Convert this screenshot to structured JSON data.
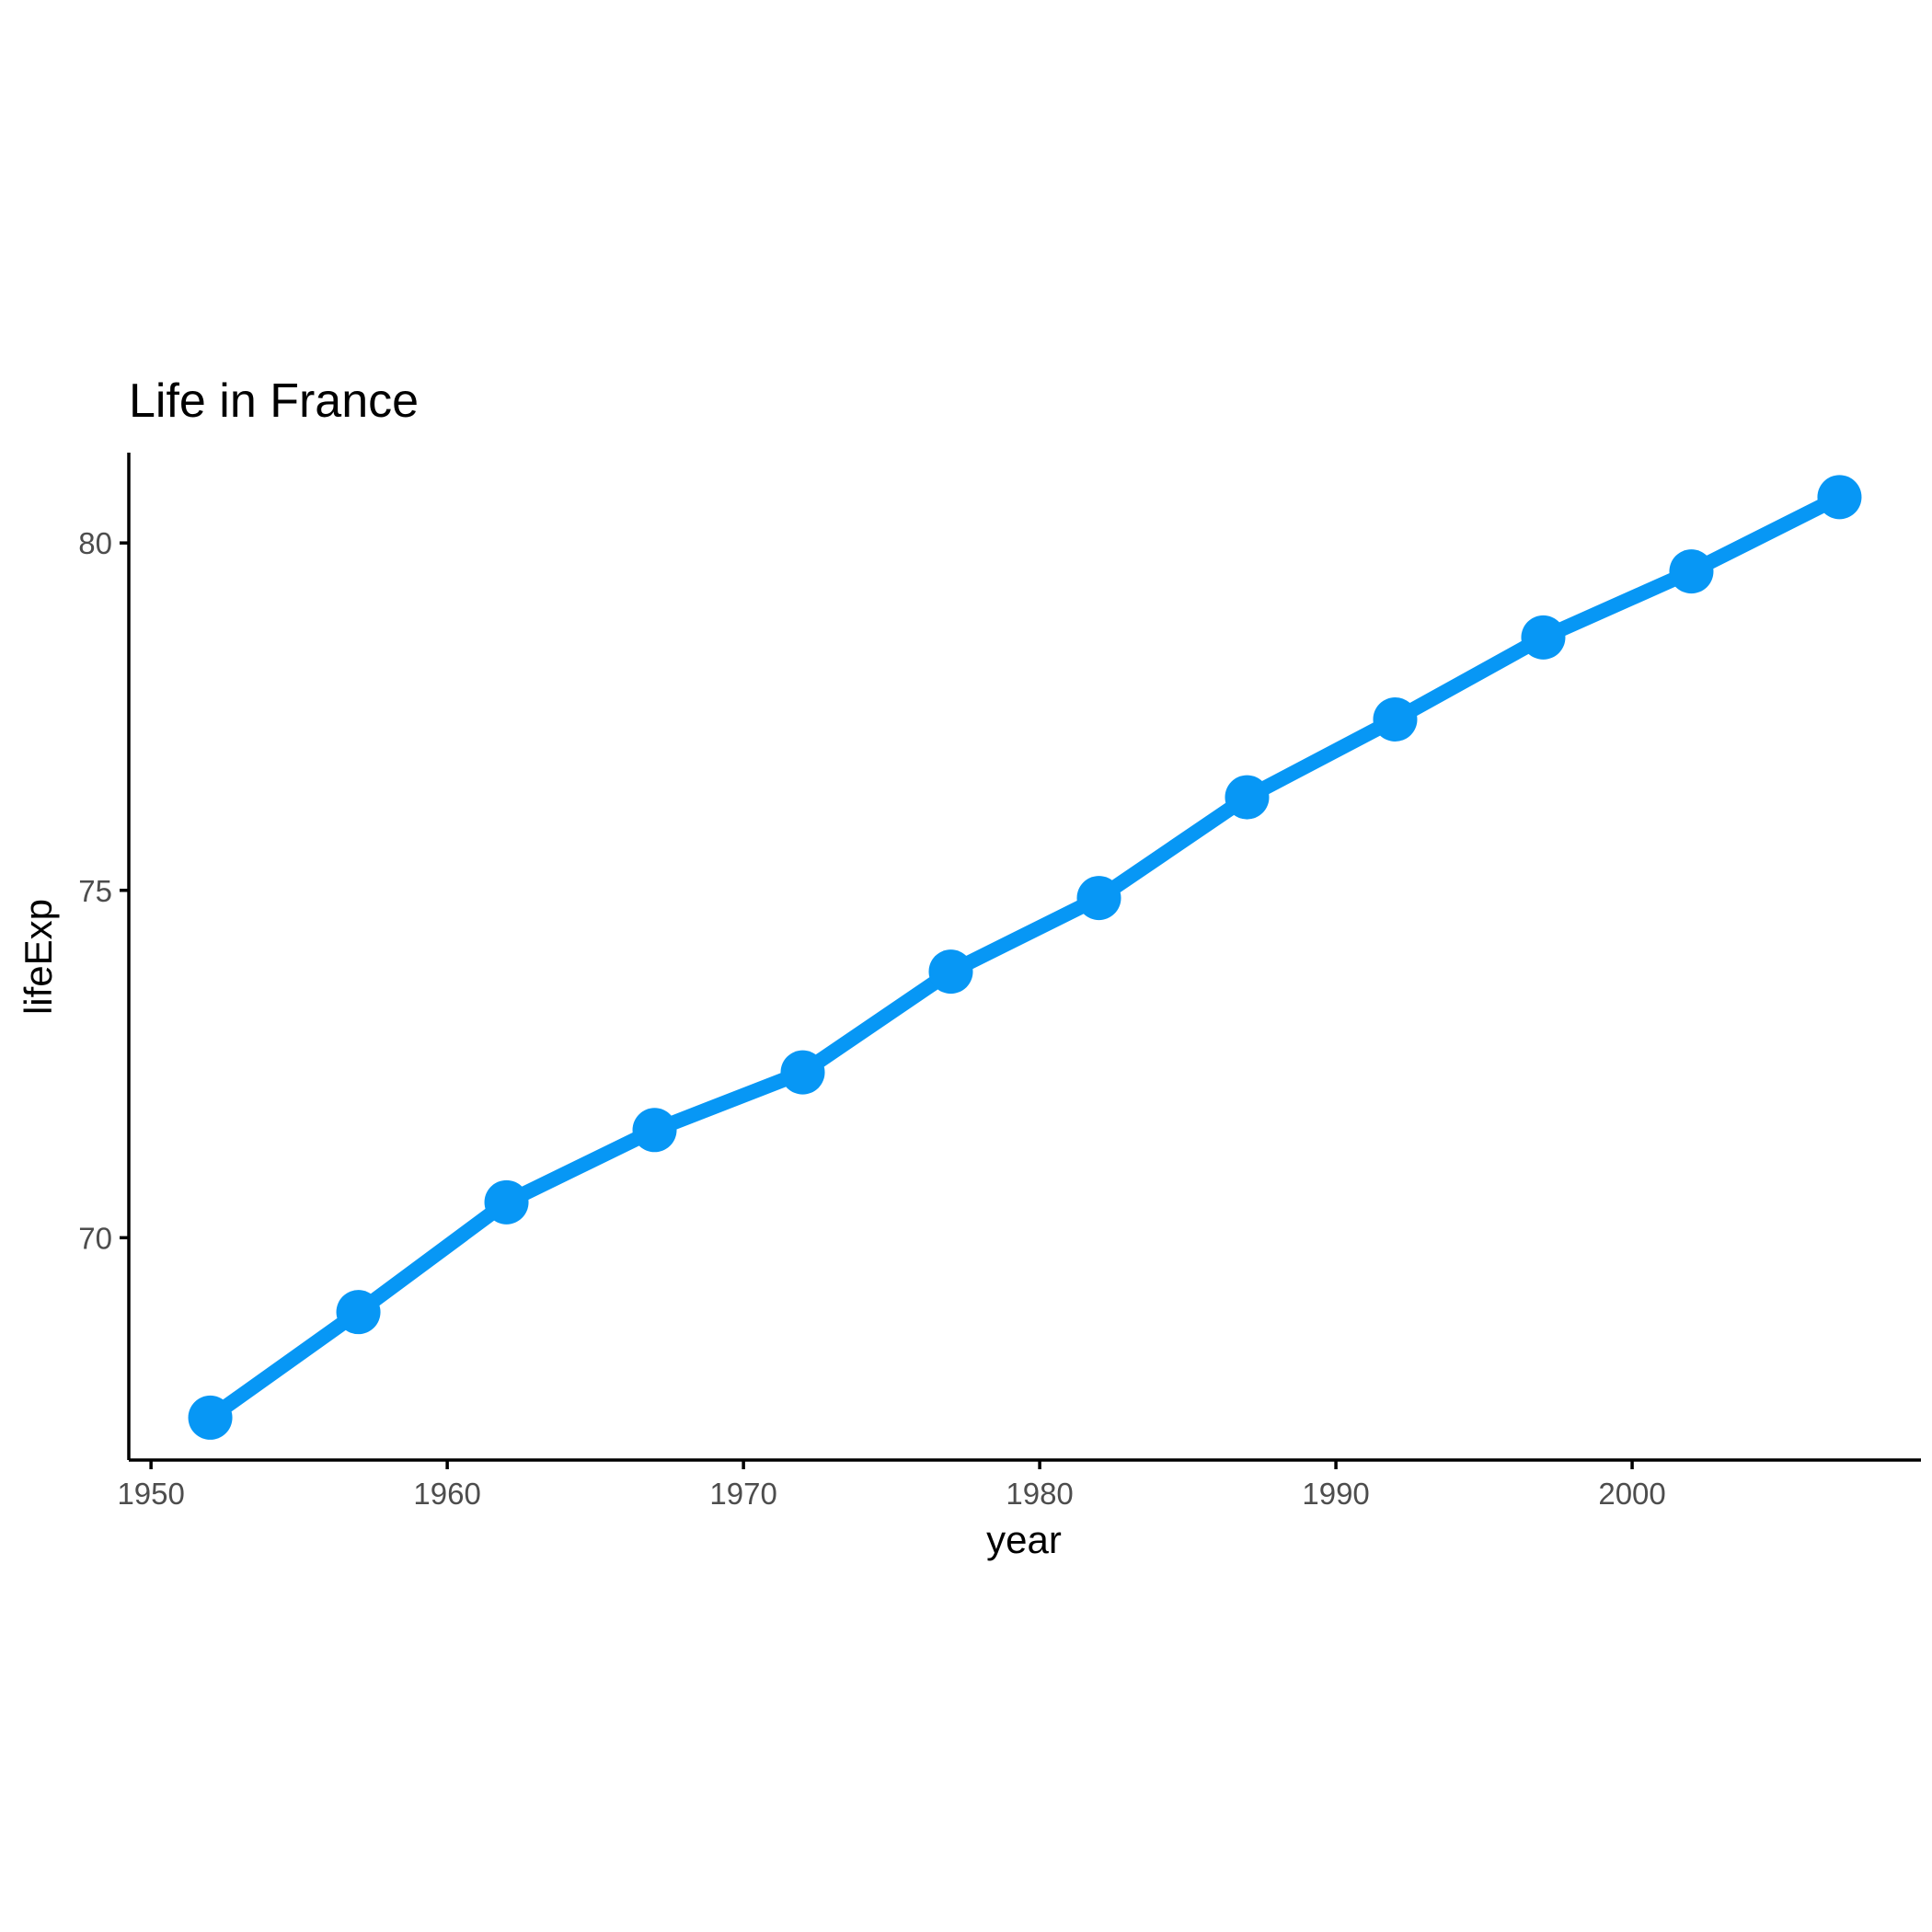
{
  "chart_data": {
    "type": "line",
    "title": "Life in France",
    "xlabel": "year",
    "ylabel": "lifeExp",
    "x": [
      1952,
      1957,
      1962,
      1967,
      1972,
      1977,
      1982,
      1987,
      1992,
      1997,
      2002,
      2007
    ],
    "series": [
      {
        "values": [
          67.41,
          68.93,
          70.51,
          71.55,
          72.38,
          73.83,
          74.89,
          76.34,
          77.46,
          78.64,
          79.59,
          80.66
        ]
      }
    ],
    "xlim": [
      1949.25,
      2009.75
    ],
    "ylim": [
      66.8,
      81.3
    ],
    "xticks": [
      1950,
      1960,
      1970,
      1980,
      1990,
      2000
    ],
    "yticks": [
      70,
      75,
      80
    ],
    "grid": false,
    "legend": "none",
    "colors": {
      "series": "#0797f5",
      "axis": "#000000",
      "tick_label": "#4d4d4d"
    }
  }
}
